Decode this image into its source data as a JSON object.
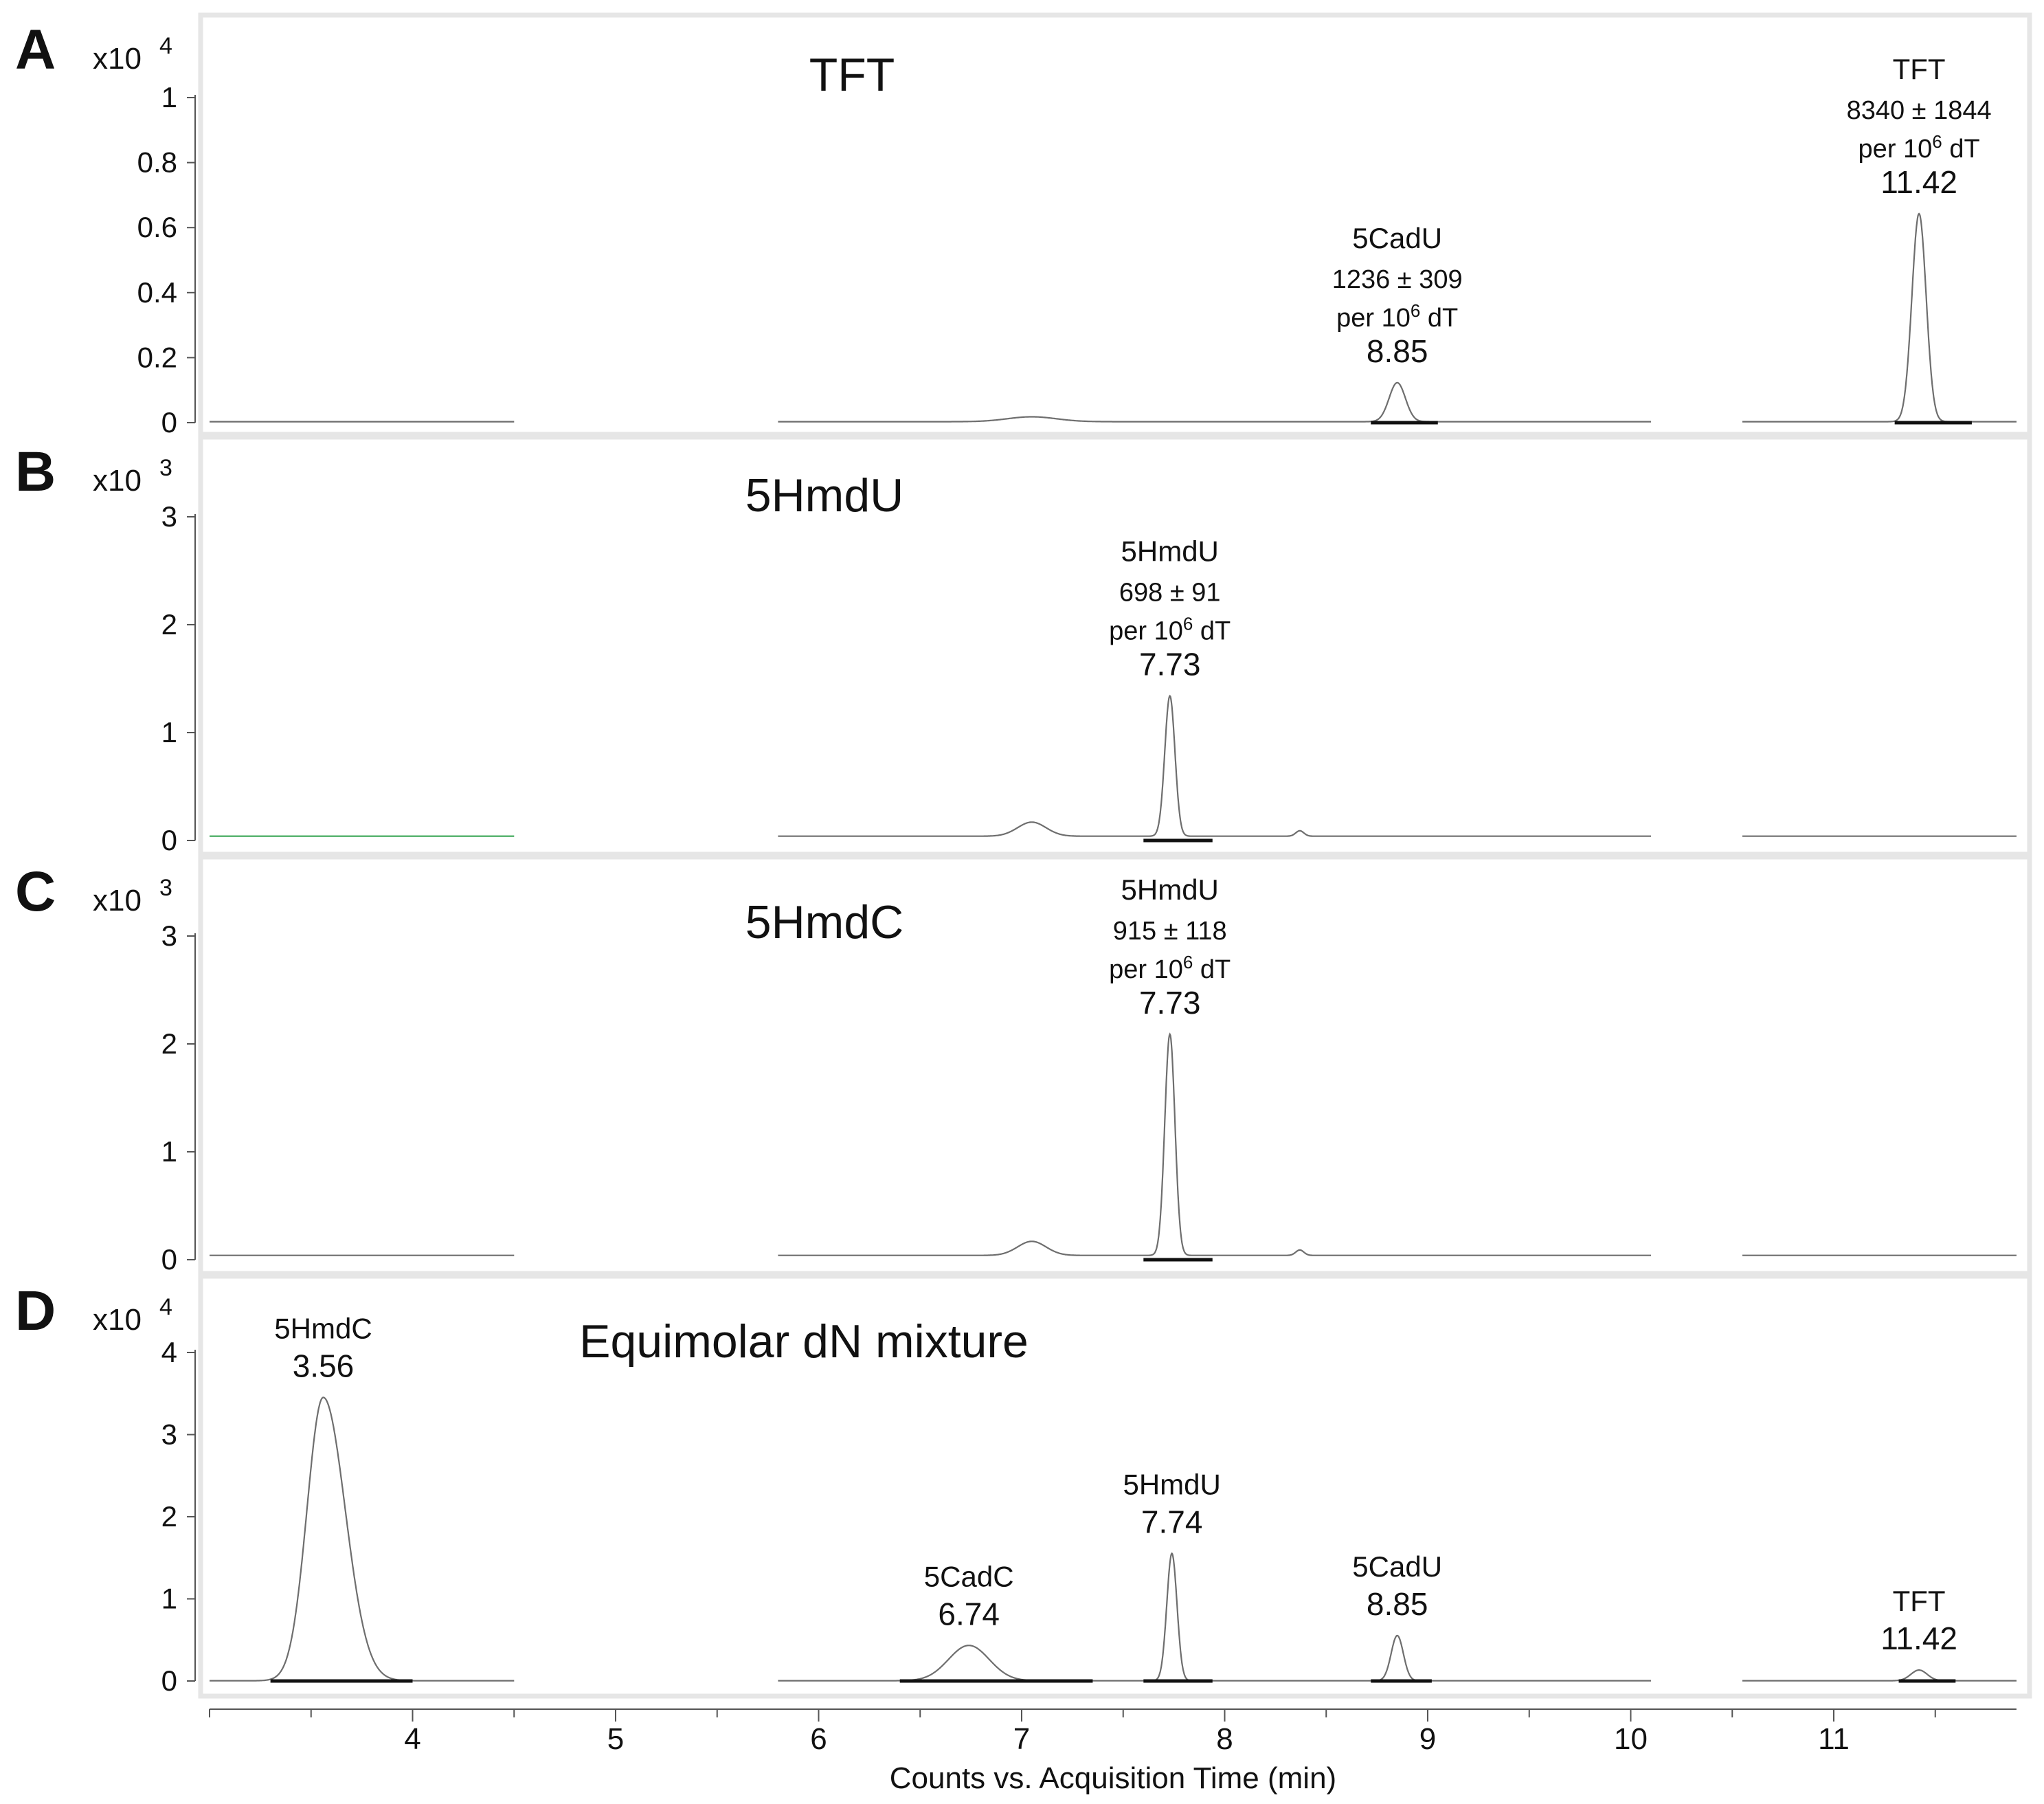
{
  "figure": {
    "xlabel": "Counts vs. Acquisition Time (min)",
    "xticks": [
      "4",
      "5",
      "6",
      "7",
      "8",
      "9",
      "10",
      "11"
    ],
    "colors": {
      "trace": "#6e6e6e",
      "baseline": "#111111",
      "frame": "#e6e6e6",
      "green_trace": "#3aa655"
    }
  },
  "chart_data": [
    {
      "type": "line",
      "panel": "A",
      "title": "TFT",
      "multiplier": "x10",
      "exponent": "4",
      "xlim": [
        3,
        12
      ],
      "ylim": [
        0,
        1
      ],
      "yticks": [
        "0",
        "0.2",
        "0.4",
        "0.6",
        "0.8",
        "1"
      ],
      "segments": [
        [
          3.0,
          4.5
        ],
        [
          5.8,
          10.1
        ],
        [
          10.55,
          11.9
        ]
      ],
      "peaks": [
        {
          "rt": 7.05,
          "height": 0.015,
          "width": 0.12,
          "label": false
        },
        {
          "rt": 8.85,
          "height": 0.12,
          "width": 0.04,
          "label": true,
          "name": "5CadU",
          "amount": "1236 ± 309",
          "unit": "per 10",
          "unit_sup": "6",
          "unit_end": " dT",
          "rt_label": "8.85"
        },
        {
          "rt": 11.42,
          "height": 0.64,
          "width": 0.035,
          "label": true,
          "name": "TFT",
          "amount": "8340 ± 1844",
          "unit": "per 10",
          "unit_sup": "6",
          "unit_end": " dT",
          "rt_label": "11.42"
        }
      ],
      "integration_bars": [
        [
          8.72,
          9.05
        ],
        [
          11.3,
          11.68
        ]
      ]
    },
    {
      "type": "line",
      "panel": "B",
      "title": "5HmdU",
      "multiplier": "x10",
      "exponent": "3",
      "xlim": [
        3,
        12
      ],
      "ylim": [
        0,
        3.5
      ],
      "yticks": [
        "0",
        "1",
        "2",
        "3"
      ],
      "baseline_level": 0.04,
      "segments": [
        [
          3.0,
          4.5
        ],
        [
          5.8,
          10.1
        ],
        [
          10.55,
          11.9
        ]
      ],
      "green_segment": [
        3.0,
        4.5
      ],
      "peaks": [
        {
          "rt": 7.05,
          "height": 0.13,
          "width": 0.07,
          "label": false
        },
        {
          "rt": 8.37,
          "height": 0.05,
          "width": 0.02,
          "label": false
        },
        {
          "rt": 7.73,
          "height": 1.3,
          "width": 0.025,
          "label": true,
          "name": "5HmdU",
          "amount": "698 ± 91",
          "unit": "per 10",
          "unit_sup": "6",
          "unit_end": " dT",
          "rt_label": "7.73"
        }
      ],
      "integration_bars": [
        [
          7.6,
          7.94
        ]
      ]
    },
    {
      "type": "line",
      "panel": "C",
      "title": "5HmdC",
      "multiplier": "x10",
      "exponent": "3",
      "xlim": [
        3,
        12
      ],
      "ylim": [
        0,
        3.5
      ],
      "yticks": [
        "0",
        "1",
        "2",
        "3"
      ],
      "baseline_level": 0.04,
      "segments": [
        [
          3.0,
          4.5
        ],
        [
          5.8,
          10.1
        ],
        [
          10.55,
          11.9
        ]
      ],
      "peaks": [
        {
          "rt": 7.05,
          "height": 0.13,
          "width": 0.07,
          "label": false
        },
        {
          "rt": 8.37,
          "height": 0.05,
          "width": 0.02,
          "label": false
        },
        {
          "rt": 7.73,
          "height": 2.05,
          "width": 0.025,
          "label": true,
          "name": "5HmdU",
          "amount": "915 ± 118",
          "unit": "per 10",
          "unit_sup": "6",
          "unit_end": " dT",
          "rt_label": "7.73"
        }
      ],
      "integration_bars": [
        [
          7.6,
          7.94
        ]
      ]
    },
    {
      "type": "line",
      "panel": "D",
      "title": "Equimolar dN mixture",
      "multiplier": "x10",
      "exponent": "4",
      "xlim": [
        3,
        12
      ],
      "ylim": [
        0,
        4.5
      ],
      "yticks": [
        "0",
        "1",
        "2",
        "3",
        "4"
      ],
      "segments": [
        [
          3.0,
          4.5
        ],
        [
          5.8,
          10.1
        ],
        [
          10.55,
          11.9
        ]
      ],
      "peaks": [
        {
          "rt": 3.56,
          "height": 3.45,
          "width": 0.08,
          "label": true,
          "name": "5HmdC",
          "rt_label": "3.56"
        },
        {
          "rt": 6.74,
          "height": 0.43,
          "width": 0.1,
          "label": true,
          "name": "5CadC",
          "rt_label": "6.74"
        },
        {
          "rt": 7.74,
          "height": 1.55,
          "width": 0.025,
          "label": true,
          "name": "5HmdU",
          "rt_label": "7.74"
        },
        {
          "rt": 8.85,
          "height": 0.55,
          "width": 0.03,
          "label": true,
          "name": "5CadU",
          "rt_label": "8.85"
        },
        {
          "rt": 11.42,
          "height": 0.13,
          "width": 0.04,
          "label": true,
          "name": "TFT",
          "rt_label": "11.42"
        }
      ],
      "integration_bars": [
        [
          3.3,
          4.0
        ],
        [
          6.4,
          7.35
        ],
        [
          7.6,
          7.94
        ],
        [
          8.72,
          9.02
        ],
        [
          11.32,
          11.6
        ]
      ]
    }
  ]
}
